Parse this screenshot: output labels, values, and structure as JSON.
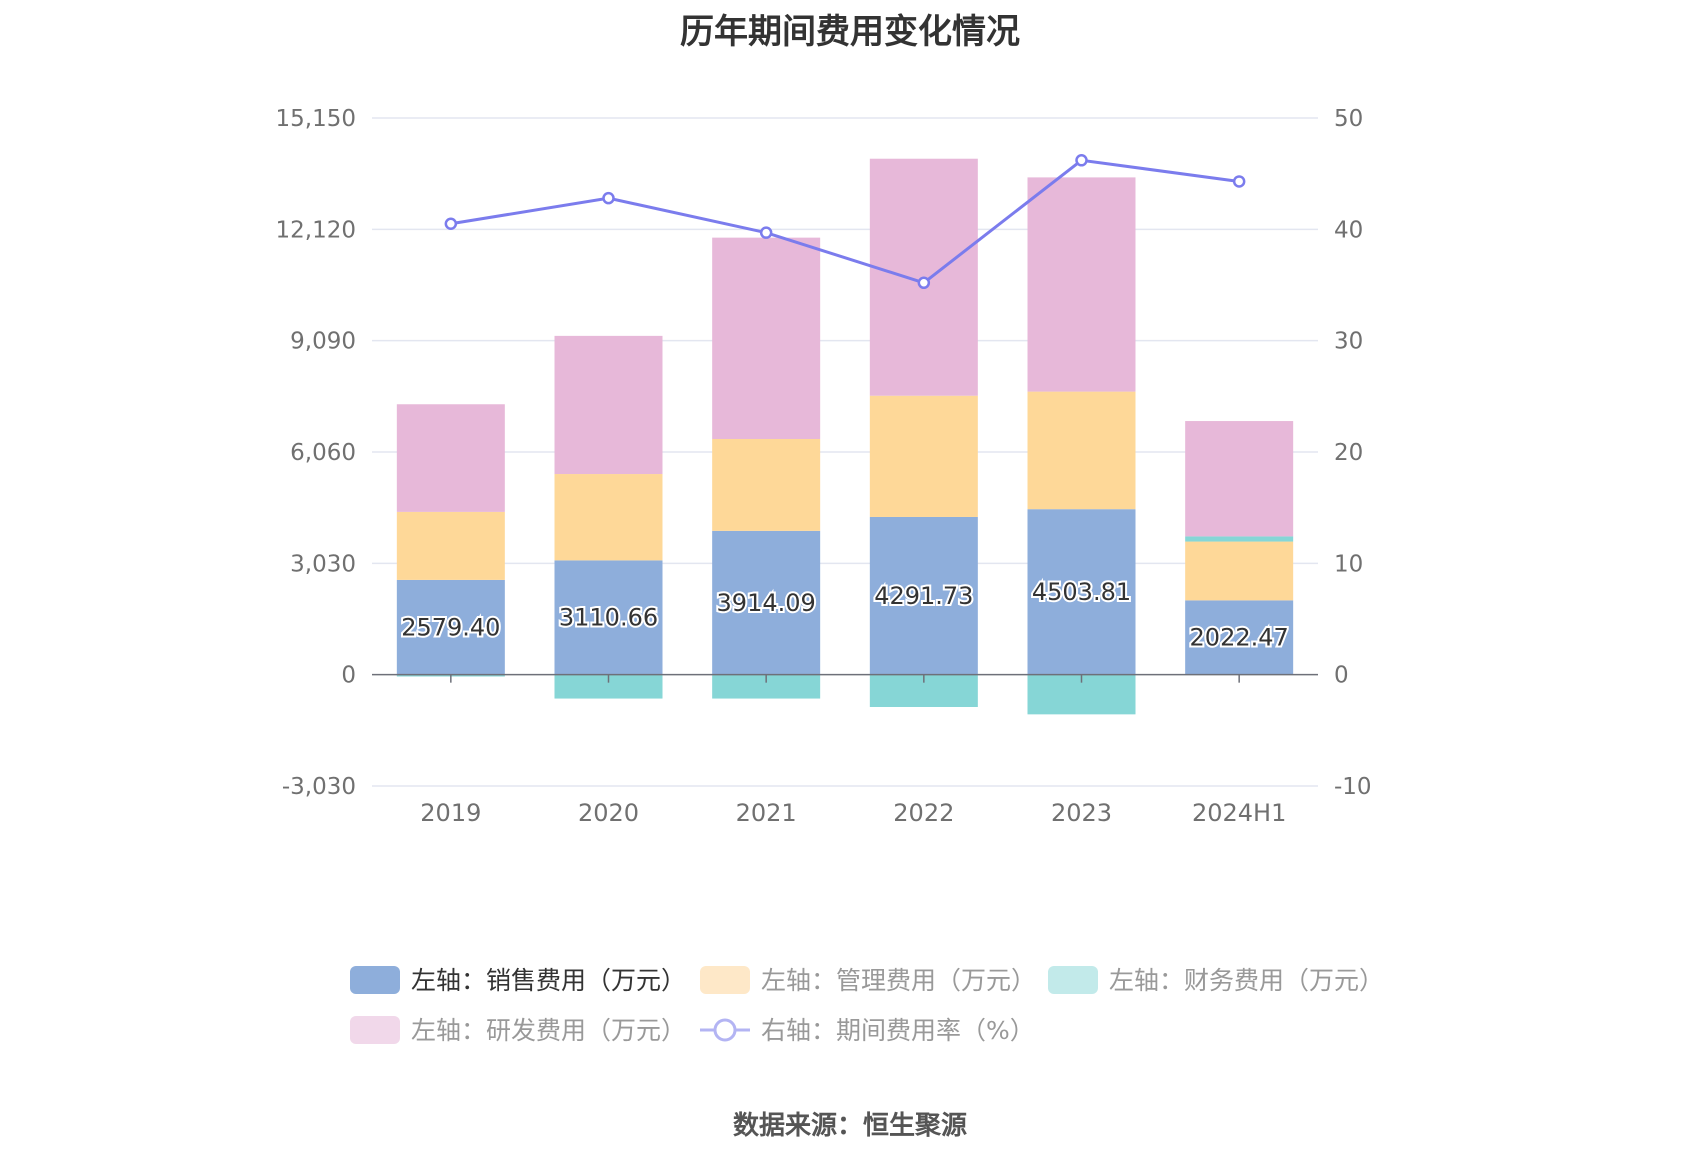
{
  "title": "历年期间费用变化情况",
  "source": "数据来源：恒生聚源",
  "colors": {
    "sales": "#8eaedb",
    "admin": "#fed898",
    "finance": "#86d6d6",
    "rd": "#e7b8d9",
    "rate": "#7b7ced",
    "grid": "#e3e6f0",
    "axis": "#6e7079",
    "legend_text_active": "#333333",
    "legend_text_inactive": "#999999"
  },
  "legend": [
    {
      "label": "左轴：销售费用（万元）",
      "color": "#8eaedb",
      "kind": "bar",
      "active": true
    },
    {
      "label": "左轴：管理费用（万元）",
      "color": "#fee8c8",
      "kind": "bar",
      "active": false
    },
    {
      "label": "左轴：财务费用（万元）",
      "color": "#c2eaea",
      "kind": "bar",
      "active": false
    },
    {
      "label": "左轴：研发费用（万元）",
      "color": "#f1d8ea",
      "kind": "bar",
      "active": false
    },
    {
      "label": "右轴：期间费用率（%）",
      "color": "#b3b4f3",
      "kind": "line",
      "active": false
    }
  ],
  "chart_data": {
    "type": "bar",
    "stacked": true,
    "title": "历年期间费用变化情况",
    "categories": [
      "2019",
      "2020",
      "2021",
      "2022",
      "2023",
      "2024H1"
    ],
    "y_left": {
      "min": -3030,
      "max": 15150,
      "ticks": [
        "-3,030",
        "0",
        "3,030",
        "6,060",
        "9,090",
        "12,120",
        "15,150"
      ]
    },
    "y_right": {
      "min": -10,
      "max": 50,
      "ticks": [
        "-10",
        "0",
        "10",
        "20",
        "30",
        "40",
        "50"
      ]
    },
    "grid": true,
    "legend_position": "bottom",
    "series": [
      {
        "name": "左轴：销售费用（万元）",
        "axis": "left",
        "type": "bar",
        "color": "#8eaedb",
        "values": [
          2579.4,
          3110.66,
          3914.09,
          4291.73,
          4503.81,
          2022.47
        ],
        "labels": [
          "2579.40",
          "3110.66",
          "3914.09",
          "4291.73",
          "4503.81",
          "2022.47"
        ]
      },
      {
        "name": "左轴：管理费用（万元）",
        "axis": "left",
        "type": "bar",
        "color": "#fed898",
        "values": [
          1850,
          2350,
          2500,
          3300,
          3200,
          1600
        ]
      },
      {
        "name": "左轴：财务费用（万元）",
        "axis": "left",
        "type": "bar",
        "color": "#86d6d6",
        "values": [
          -50,
          -650,
          -650,
          -880,
          -1080,
          140
        ]
      },
      {
        "name": "左轴：研发费用（万元）",
        "axis": "left",
        "type": "bar",
        "color": "#e7b8d9",
        "values": [
          2930,
          3760,
          5480,
          6450,
          5830,
          3140
        ]
      },
      {
        "name": "右轴：期间费用率（%）",
        "axis": "right",
        "type": "line",
        "color": "#7b7ced",
        "values": [
          40.5,
          42.8,
          39.7,
          35.2,
          46.2,
          44.3
        ]
      }
    ]
  }
}
